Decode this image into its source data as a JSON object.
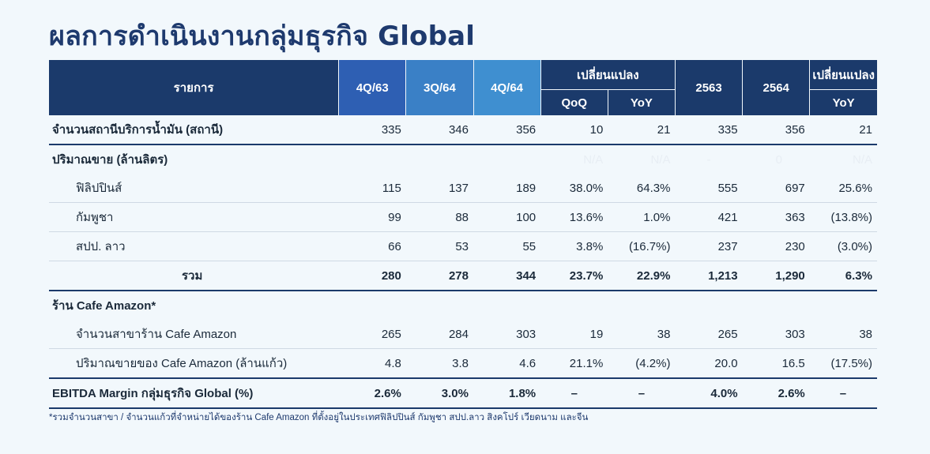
{
  "title": "ผลการดำเนินงานกลุ่มธุรกิจ Global",
  "header": {
    "item": "รายการ",
    "q1": "4Q/63",
    "q2": "3Q/64",
    "q3": "4Q/64",
    "change": "เปลี่ยนแปลง",
    "qoq": "QoQ",
    "yoy": "YoY",
    "y1": "2563",
    "y2": "2564",
    "change2": "เปลี่ยนแปลง",
    "yoy2": "YoY"
  },
  "rows": [
    {
      "label": "จำนวนสถานีบริการน้ำมัน (สถานี)",
      "v": [
        "335",
        "346",
        "356",
        "10",
        "21",
        "335",
        "356",
        "21"
      ]
    },
    {
      "label": "ปริมาณขาย (ล้านลิตร)",
      "v": [
        "",
        "",
        "",
        "N/A",
        "N/A",
        "-",
        "0",
        "N/A"
      ]
    },
    {
      "label": "ฟิลิปปินส์",
      "v": [
        "115",
        "137",
        "189",
        "38.0%",
        "64.3%",
        "555",
        "697",
        "25.6%"
      ]
    },
    {
      "label": "กัมพูชา",
      "v": [
        "99",
        "88",
        "100",
        "13.6%",
        "1.0%",
        "421",
        "363",
        "(13.8%)"
      ]
    },
    {
      "label": "สปป. ลาว",
      "v": [
        "66",
        "53",
        "55",
        "3.8%",
        "(16.7%)",
        "237",
        "230",
        "(3.0%)"
      ]
    },
    {
      "label": "รวม",
      "v": [
        "280",
        "278",
        "344",
        "23.7%",
        "22.9%",
        "1,213",
        "1,290",
        "6.3%"
      ]
    },
    {
      "label": "ร้าน Cafe Amazon*",
      "v": [
        "",
        "",
        "",
        "",
        "",
        "",
        "",
        ""
      ]
    },
    {
      "label": "จำนวนสาขาร้าน Cafe Amazon",
      "v": [
        "265",
        "284",
        "303",
        "19",
        "38",
        "265",
        "303",
        "38"
      ]
    },
    {
      "label": "ปริมาณขายของ Cafe Amazon (ล้านแก้ว)",
      "v": [
        "4.8",
        "3.8",
        "4.6",
        "21.1%",
        "(4.2%)",
        "20.0",
        "16.5",
        "(17.5%)"
      ]
    },
    {
      "label": "EBITDA Margin กลุ่มธุรกิจ Global (%)",
      "v": [
        "2.6%",
        "3.0%",
        "1.8%",
        "–",
        "–",
        "4.0%",
        "2.6%",
        "–"
      ]
    }
  ],
  "footnote": "*รวมจำนวนสาขา / จำนวนแก้วที่จำหน่ายได้ของร้าน Cafe Amazon ที่ตั้งอยู่ในประเทศฟิลิปปินส์ กัมพูชา สปป.ลาว สิงคโปร์ เวียดนาม และจีน"
}
